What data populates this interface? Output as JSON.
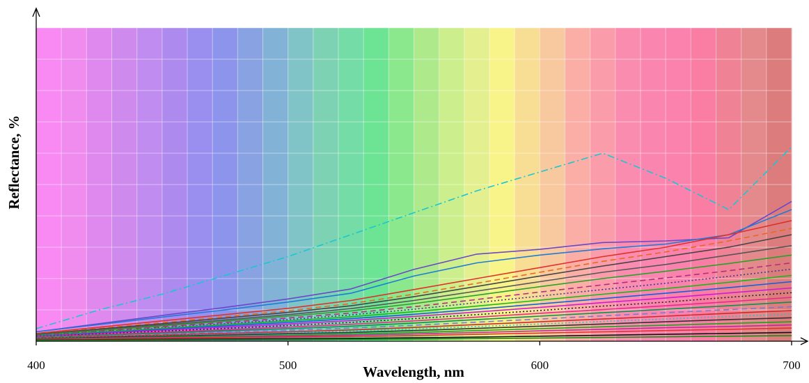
{
  "chart_data": {
    "type": "line",
    "xlabel": "Wavelength, nm",
    "ylabel": "Reflectance, %",
    "xlim": [
      400,
      700
    ],
    "ylim": [
      0,
      100
    ],
    "x_ticks": [
      "400",
      "500",
      "600",
      "700"
    ],
    "y_ticks_shown": false,
    "grid": true,
    "legend": "none",
    "background": "visible-spectrum color bands",
    "x": [
      400,
      425,
      450,
      475,
      500,
      525,
      550,
      575,
      600,
      625,
      650,
      675,
      700
    ],
    "series": [
      {
        "color": "#19c6d2",
        "dash": "dashdot",
        "values": [
          4,
          10,
          15,
          21,
          27,
          34,
          41,
          48,
          54,
          60,
          52,
          42,
          62
        ]
      },
      {
        "color": "#6a48c8",
        "dash": "solid",
        "values": [
          3,
          5.6,
          8.2,
          10.8,
          13.5,
          16.7,
          22.9,
          27.8,
          29.3,
          31.5,
          32,
          33,
          44.6
        ]
      },
      {
        "color": "#1f7bd6",
        "dash": "solid",
        "values": [
          3,
          5.3,
          7.7,
          10,
          12.5,
          15.3,
          20.8,
          25,
          27.5,
          29.5,
          31,
          34,
          42
        ]
      },
      {
        "color": "#e0302a",
        "dash": "solid",
        "values": [
          2.5,
          4.5,
          6.5,
          8.5,
          10.5,
          13,
          16.5,
          20,
          23.5,
          27,
          30,
          34,
          38.5
        ]
      },
      {
        "color": "#e66a1e",
        "dash": "dashed",
        "values": [
          2.3,
          4.1,
          5.9,
          7.8,
          9.7,
          12,
          15,
          18.5,
          22,
          25.5,
          28.5,
          32,
          36
        ]
      },
      {
        "color": "#444444",
        "dash": "solid",
        "values": [
          2.2,
          3.9,
          5.6,
          7.4,
          9.2,
          11.3,
          14.2,
          17.5,
          20.8,
          24,
          27,
          30,
          34
        ]
      },
      {
        "color": "#555555",
        "dash": "solid",
        "values": [
          2,
          3.6,
          5.2,
          6.8,
          8.5,
          10.4,
          13,
          16,
          19,
          22,
          24.5,
          27.5,
          30.5
        ]
      },
      {
        "color": "#2aa02a",
        "dash": "solid",
        "values": [
          2,
          3.4,
          4.9,
          6.4,
          8,
          9.7,
          12,
          14.7,
          17.4,
          20,
          22.3,
          24.8,
          27.5
        ]
      },
      {
        "color": "#b0307a",
        "dash": "dashed",
        "values": [
          1.9,
          3.2,
          4.6,
          6,
          7.4,
          9,
          11,
          13.3,
          15.7,
          18,
          20.2,
          22.5,
          25
        ]
      },
      {
        "color": "#3b3b8f",
        "dash": "dotted",
        "values": [
          1.8,
          3,
          4.3,
          5.6,
          6.9,
          8.4,
          10.2,
          12.3,
          14.4,
          16.5,
          18.5,
          20.7,
          23
        ]
      },
      {
        "color": "#18b818",
        "dash": "solid",
        "values": [
          1.7,
          2.9,
          4.1,
          5.3,
          6.5,
          7.8,
          9.4,
          11.2,
          13.1,
          15,
          16.8,
          18.8,
          21
        ]
      },
      {
        "color": "#1560d8",
        "dash": "solid",
        "values": [
          1.6,
          2.7,
          3.8,
          4.9,
          6,
          7.2,
          8.6,
          10.2,
          11.9,
          13.6,
          15.3,
          17.1,
          19
        ]
      },
      {
        "color": "#d21ad2",
        "dash": "solid",
        "values": [
          1.5,
          2.5,
          3.5,
          4.5,
          5.5,
          6.6,
          7.9,
          9.3,
          10.8,
          12.3,
          13.8,
          15.4,
          17
        ]
      },
      {
        "color": "#222222",
        "dash": "dotted",
        "values": [
          1.4,
          2.3,
          3.2,
          4.1,
          5,
          6,
          7.2,
          8.5,
          9.8,
          11.2,
          12.5,
          14,
          15.5
        ]
      },
      {
        "color": "#e82a8a",
        "dash": "solid",
        "values": [
          1.3,
          2.1,
          2.9,
          3.7,
          4.5,
          5.4,
          6.5,
          7.7,
          8.9,
          10.1,
          11.3,
          12.6,
          14
        ]
      },
      {
        "color": "#0f8f4f",
        "dash": "solid",
        "values": [
          1.2,
          1.9,
          2.6,
          3.3,
          4,
          4.8,
          5.8,
          6.9,
          8,
          9.1,
          10.2,
          11.3,
          12.5
        ]
      },
      {
        "color": "#7a7ac8",
        "dash": "dashed",
        "values": [
          1.1,
          1.7,
          2.3,
          2.9,
          3.5,
          4.2,
          5.1,
          6.1,
          7.1,
          8.1,
          9.1,
          10.1,
          11
        ]
      },
      {
        "color": "#d02828",
        "dash": "solid",
        "values": [
          1,
          1.5,
          2,
          2.5,
          3,
          3.6,
          4.4,
          5.3,
          6.2,
          7.1,
          8,
          8.9,
          9.8
        ]
      },
      {
        "color": "#2cc0c0",
        "dash": "dotted",
        "values": [
          0.9,
          1.3,
          1.8,
          2.2,
          2.7,
          3.2,
          3.9,
          4.7,
          5.5,
          6.3,
          7.1,
          7.9,
          8.6
        ]
      },
      {
        "color": "#333333",
        "dash": "solid",
        "values": [
          0.8,
          1.2,
          1.6,
          2,
          2.4,
          2.8,
          3.4,
          4.1,
          4.8,
          5.5,
          6.2,
          6.9,
          7.5
        ]
      },
      {
        "color": "#1fa01f",
        "dash": "solid",
        "values": [
          0.7,
          1,
          1.3,
          1.6,
          1.9,
          2.3,
          2.8,
          3.4,
          4,
          4.6,
          5.1,
          5.7,
          6.2
        ]
      },
      {
        "color": "#c4289a",
        "dash": "solid",
        "values": [
          0.6,
          0.9,
          1.1,
          1.3,
          1.6,
          1.9,
          2.3,
          2.8,
          3.3,
          3.8,
          4.3,
          4.7,
          5.2
        ]
      },
      {
        "color": "#e33030",
        "dash": "solid",
        "values": [
          0.5,
          0.7,
          0.9,
          1.1,
          1.3,
          1.5,
          1.8,
          2.2,
          2.6,
          3,
          3.4,
          3.8,
          4.2
        ]
      },
      {
        "color": "#111111",
        "dash": "solid",
        "values": [
          0.4,
          0.5,
          0.6,
          0.7,
          0.8,
          0.9,
          1.1,
          1.3,
          1.6,
          1.9,
          2.2,
          2.5,
          2.8
        ]
      },
      {
        "color": "#168a16",
        "dash": "solid",
        "values": [
          0.3,
          0.35,
          0.4,
          0.45,
          0.5,
          0.6,
          0.7,
          0.85,
          1,
          1.2,
          1.4,
          1.6,
          1.8
        ]
      }
    ]
  }
}
